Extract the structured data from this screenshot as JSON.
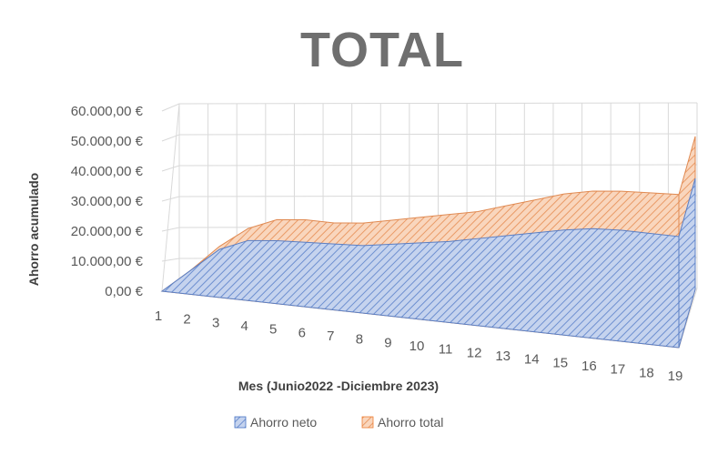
{
  "chart_data": {
    "type": "area",
    "title": "TOTAL",
    "xlabel": "Mes (Junio2022 -Diciembre 2023)",
    "ylabel": "Ahorro acumulado",
    "categories": [
      "1",
      "2",
      "3",
      "4",
      "5",
      "6",
      "7",
      "8",
      "9",
      "10",
      "11",
      "12",
      "13",
      "14",
      "15",
      "16",
      "17",
      "18",
      "19"
    ],
    "ytick_labels": [
      "0,00 €",
      "10.000,00 €",
      "20.000,00 €",
      "30.000,00 €",
      "40.000,00 €",
      "50.000,00 €",
      "60.000,00 €"
    ],
    "ylim": [
      0,
      60000
    ],
    "grid": true,
    "three_d": true,
    "legend_position": "bottom",
    "series": [
      {
        "name": "Ahorro neto",
        "color": "#4472c4",
        "values": [
          0,
          8000,
          16000,
          20000,
          21000,
          21500,
          22000,
          22500,
          24000,
          25500,
          27000,
          29000,
          31000,
          33000,
          35000,
          36500,
          37000,
          37000,
          37000
        ]
      },
      {
        "name": "Ahorro total",
        "color": "#ed7d31",
        "values": [
          0,
          8000,
          17000,
          24000,
          28000,
          29000,
          29000,
          30000,
          32000,
          34000,
          36000,
          38000,
          41000,
          44000,
          47000,
          49000,
          50000,
          50500,
          51000
        ]
      }
    ]
  }
}
